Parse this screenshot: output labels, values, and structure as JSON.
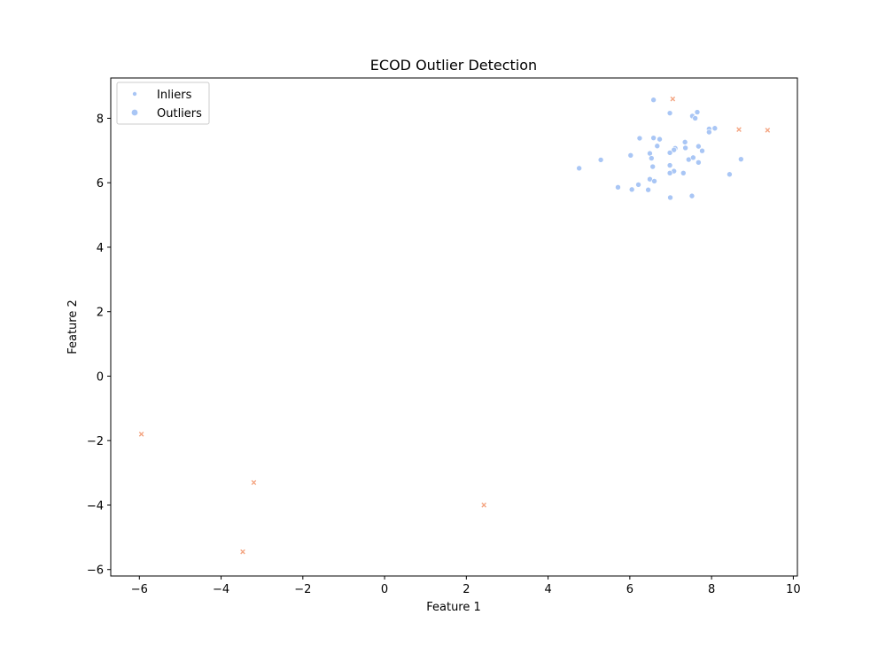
{
  "chart_data": {
    "type": "scatter",
    "title": "ECOD Outlier Detection",
    "xlabel": "Feature 1",
    "ylabel": "Feature 2",
    "xlim": [
      -6.7,
      10.1
    ],
    "ylim": [
      -6.2,
      9.25
    ],
    "xticks": [
      -6,
      -4,
      -2,
      0,
      2,
      4,
      6,
      8,
      10
    ],
    "yticks": [
      -6,
      -4,
      -2,
      0,
      2,
      4,
      6,
      8
    ],
    "grid": false,
    "legend_position": "top-left",
    "series": [
      {
        "name": "Inliers",
        "marker": "circle",
        "color": "#a9c6f5",
        "points": [
          [
            6.58,
            8.57
          ],
          [
            6.98,
            8.16
          ],
          [
            7.65,
            8.19
          ],
          [
            7.53,
            8.07
          ],
          [
            7.6,
            8.0
          ],
          [
            7.94,
            7.67
          ],
          [
            8.08,
            7.69
          ],
          [
            7.94,
            7.57
          ],
          [
            6.24,
            7.38
          ],
          [
            6.58,
            7.39
          ],
          [
            6.73,
            7.35
          ],
          [
            6.67,
            7.14
          ],
          [
            7.35,
            7.26
          ],
          [
            7.11,
            7.07
          ],
          [
            7.36,
            7.08
          ],
          [
            7.68,
            7.13
          ],
          [
            7.77,
            6.99
          ],
          [
            7.08,
            7.02
          ],
          [
            6.98,
            6.93
          ],
          [
            6.49,
            6.91
          ],
          [
            6.53,
            6.76
          ],
          [
            6.02,
            6.85
          ],
          [
            5.29,
            6.71
          ],
          [
            7.44,
            6.72
          ],
          [
            7.55,
            6.78
          ],
          [
            7.68,
            6.63
          ],
          [
            8.72,
            6.73
          ],
          [
            6.98,
            6.54
          ],
          [
            6.56,
            6.5
          ],
          [
            4.76,
            6.45
          ],
          [
            7.08,
            6.36
          ],
          [
            6.98,
            6.3
          ],
          [
            7.31,
            6.3
          ],
          [
            8.44,
            6.26
          ],
          [
            6.49,
            6.11
          ],
          [
            6.6,
            6.05
          ],
          [
            6.21,
            5.94
          ],
          [
            5.71,
            5.86
          ],
          [
            6.05,
            5.79
          ],
          [
            6.45,
            5.78
          ],
          [
            7.52,
            5.59
          ],
          [
            6.99,
            5.54
          ]
        ]
      },
      {
        "name": "Outliers",
        "marker": "x",
        "color": "#f4a582",
        "points": [
          [
            7.05,
            8.6
          ],
          [
            8.67,
            7.65
          ],
          [
            9.37,
            7.63
          ],
          [
            -5.95,
            -1.8
          ],
          [
            -3.2,
            -3.3
          ],
          [
            2.43,
            -4.0
          ],
          [
            -3.47,
            -5.45
          ]
        ]
      }
    ]
  }
}
